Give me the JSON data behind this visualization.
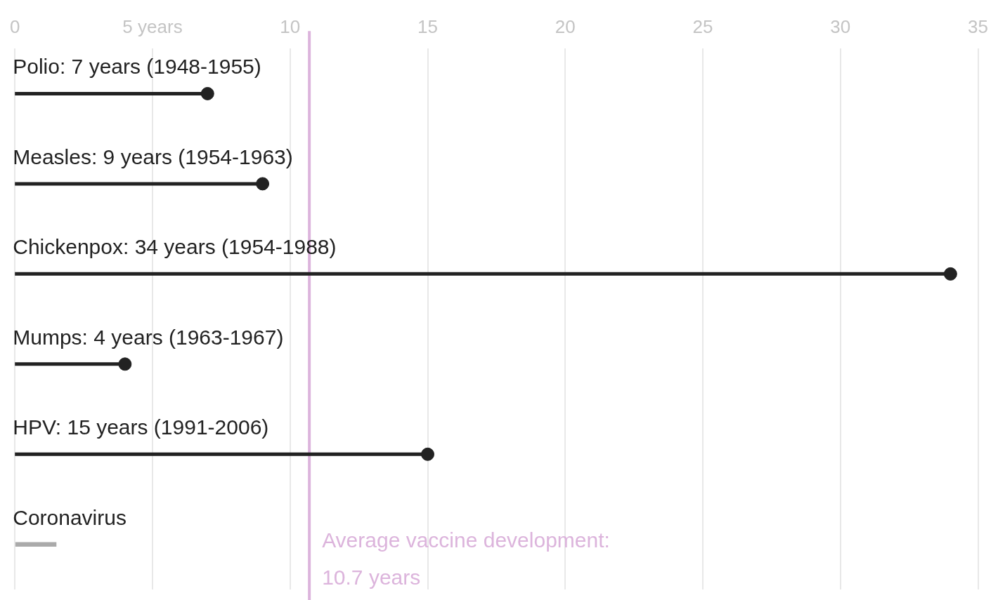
{
  "chart_data": {
    "type": "lollipop",
    "orientation": "horizontal",
    "categories": [
      "Polio: 7 years (1948-1955)",
      "Measles: 9 years (1954-1963)",
      "Chickenpox: 34 years (1954-1988)",
      "Mumps: 4 years (1963-1967)",
      "HPV: 15 years (1991-2006)",
      "Coronavirus"
    ],
    "series": [
      {
        "color": "#222222",
        "values": [
          7,
          9,
          34,
          4,
          15,
          null
        ]
      },
      {
        "type": "bar",
        "color": "#aaaaaa",
        "values": [
          null,
          null,
          null,
          null,
          null,
          1.5
        ]
      }
    ],
    "xlim": [
      0,
      35
    ],
    "xticks": [
      0,
      {
        "value": 5,
        "label": "5 years"
      },
      10,
      15,
      20,
      25,
      30,
      35
    ],
    "grid": "x",
    "marker": "circle",
    "ref_lines": [
      {
        "axis": "x",
        "value": 10.7,
        "label": "Average vaccine development: 10.7 years",
        "color": "#dcb4dc"
      }
    ]
  }
}
